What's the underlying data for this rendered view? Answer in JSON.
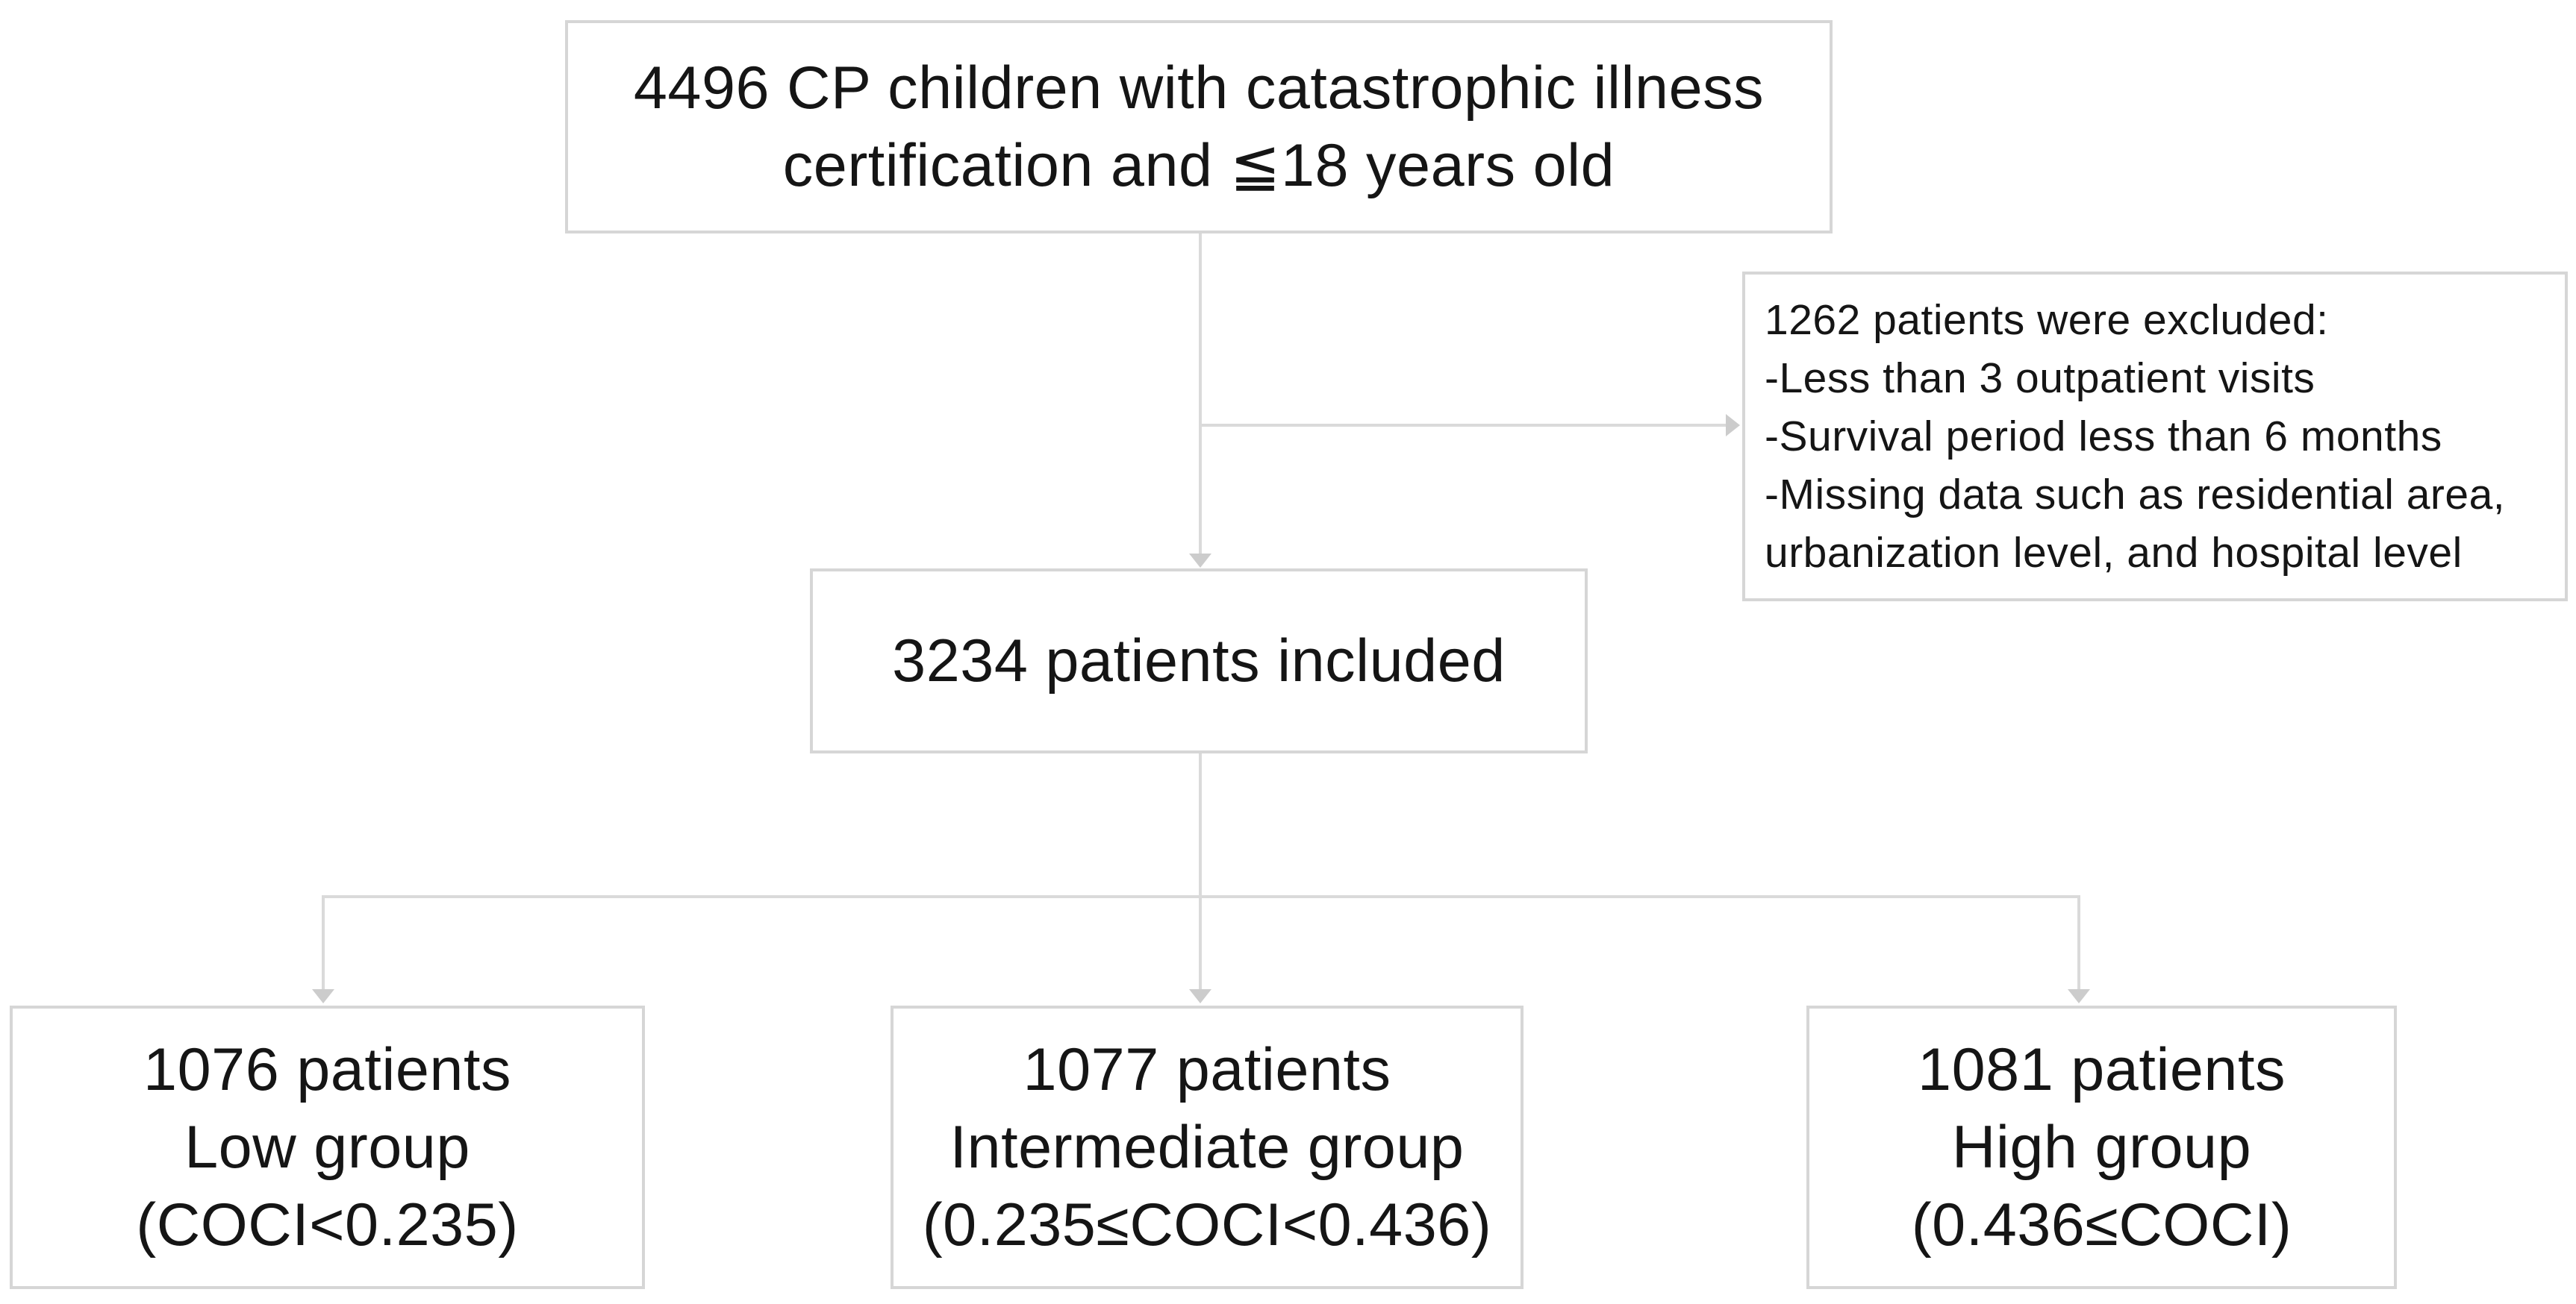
{
  "diagram": {
    "background_color": "#ffffff",
    "box_border_color": "#d6d6d6",
    "connector_color": "#dadada",
    "text_color": "#151515",
    "boxes": {
      "top": {
        "lines": [
          "4496 CP children with catastrophic illness",
          "certification and ≦18 years old"
        ]
      },
      "excluded": {
        "lines": [
          "1262 patients were excluded:",
          "-Less than 3 outpatient visits",
          "-Survival period less than 6 months",
          "-Missing data such as residential area,",
          "urbanization level, and hospital level"
        ]
      },
      "included": {
        "lines": [
          "3234 patients included"
        ]
      },
      "low": {
        "lines": [
          "1076 patients",
          "Low group",
          "(COCI<0.235)"
        ]
      },
      "intermediate": {
        "lines": [
          "1077 patients",
          "Intermediate group",
          "(0.235≤COCI<0.436)"
        ]
      },
      "high": {
        "lines": [
          "1081 patients",
          "High group",
          "(0.436≤COCI)"
        ]
      }
    }
  }
}
